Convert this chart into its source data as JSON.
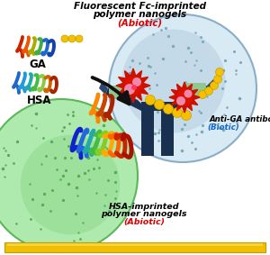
{
  "title_top_line1": "Fluorescent Fc-imprinted",
  "title_top_line2": "polymer nanogels",
  "title_top_abiotic": "(Abiotic)",
  "label_GA": "GA",
  "label_HSA": "HSA",
  "label_anti_ga_line1": "Anti-GA antibody",
  "label_anti_ga_line2": "(Biotic)",
  "label_hsa_imprinted_line1": "HSA-imprinted",
  "label_hsa_imprinted_line2": "polymer nanogels",
  "label_hsa_imprinted_abiotic": "(Abiotic)",
  "bg_color": "#ffffff",
  "nanogel_top_color": "#8aaec8",
  "nanogel_top_light": "#b8d0e0",
  "nanogel_top_lighter": "#d8eaf4",
  "nanogel_bottom_color": "#5ab85a",
  "nanogel_bottom_light": "#8cd88c",
  "nanogel_bottom_lighter": "#aeeaae",
  "antibody_dark": "#1a3050",
  "antibody_mid": "#2a4870",
  "gold_bar_color": "#f0c000",
  "gold_bar_edge": "#c89800",
  "text_black": "#000000",
  "text_red": "#dd0000",
  "text_blue": "#1166cc",
  "arrow_color": "#111111",
  "burst_red": "#cc1100",
  "burst_pink": "#ee88aa",
  "yellow_bead": "#f5c000",
  "yellow_bead_edge": "#c8a000",
  "green_light": "#90c890",
  "dot_color_blue": "#7aaabb",
  "dot_color_green": "#5aaa5a"
}
